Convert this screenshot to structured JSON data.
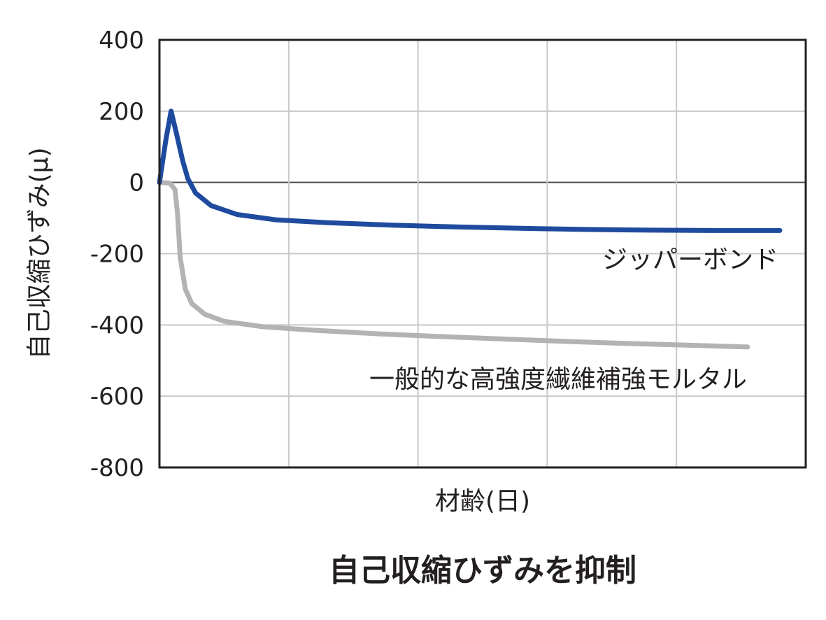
{
  "chart_data": {
    "type": "line",
    "xlabel": "材齢(日)",
    "ylabel": "自己収縮ひずみ(μ)",
    "caption": "自己収縮ひずみを抑制",
    "ylim": [
      -800,
      400
    ],
    "yticks": [
      400,
      200,
      0,
      -200,
      -400,
      -600,
      -800
    ],
    "ytick_labels": [
      "400",
      "200",
      "0",
      "-200",
      "-400",
      "-600",
      "-800"
    ],
    "xlim": [
      0,
      5
    ],
    "x_gridlines": [
      1,
      2,
      3,
      4
    ],
    "grid": true,
    "series": [
      {
        "name": "ジッパーボンド",
        "color": "#1f4b9e",
        "points": [
          [
            0.0,
            0
          ],
          [
            0.05,
            120
          ],
          [
            0.09,
            200
          ],
          [
            0.13,
            140
          ],
          [
            0.18,
            60
          ],
          [
            0.22,
            10
          ],
          [
            0.28,
            -30
          ],
          [
            0.4,
            -65
          ],
          [
            0.6,
            -90
          ],
          [
            0.9,
            -105
          ],
          [
            1.3,
            -113
          ],
          [
            1.8,
            -120
          ],
          [
            2.3,
            -125
          ],
          [
            2.8,
            -129
          ],
          [
            3.3,
            -132
          ],
          [
            3.8,
            -134
          ],
          [
            4.3,
            -135
          ],
          [
            4.8,
            -135
          ]
        ]
      },
      {
        "name": "一般的な高強度繊維補強モルタル",
        "color": "#b3b3b3",
        "points": [
          [
            0.0,
            0
          ],
          [
            0.08,
            -2
          ],
          [
            0.12,
            -20
          ],
          [
            0.14,
            -90
          ],
          [
            0.16,
            -210
          ],
          [
            0.2,
            -300
          ],
          [
            0.25,
            -340
          ],
          [
            0.35,
            -370
          ],
          [
            0.5,
            -390
          ],
          [
            0.8,
            -405
          ],
          [
            1.2,
            -415
          ],
          [
            1.7,
            -425
          ],
          [
            2.2,
            -433
          ],
          [
            2.7,
            -440
          ],
          [
            3.2,
            -447
          ],
          [
            3.7,
            -453
          ],
          [
            4.2,
            -458
          ],
          [
            4.55,
            -462
          ]
        ]
      }
    ]
  }
}
